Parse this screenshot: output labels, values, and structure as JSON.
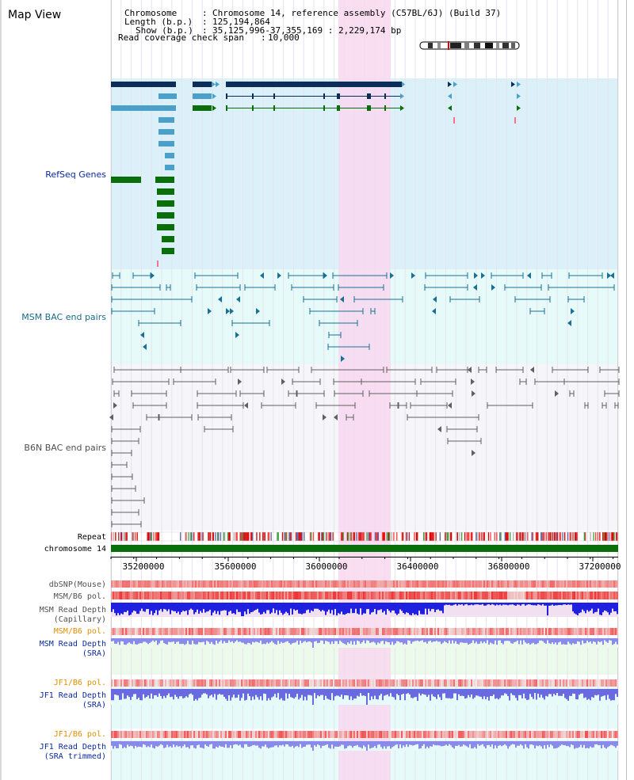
{
  "panel_title": "Map View",
  "info": {
    "chromosome_label": "Chromosome",
    "chromosome_value": "Chromosome 14, reference assembly (C57BL/6J) (Build 37)",
    "length_label": "Length (b.p.)",
    "length_value": "125,194,864",
    "show_label": "Show (b.p.)",
    "show_value": "35,125,996-37,355,169 : 2,229,174 bp",
    "span_label": "Read coverage check span",
    "span_value": "10,000"
  },
  "tracks": {
    "refseq": "RefSeq Genes",
    "msm_bac": "MSM BAC end pairs",
    "b6n_bac": "B6N BAC end pairs",
    "repeat": "Repeat",
    "chromosome": "chromosome 14",
    "dbsnp": "dbSNP(Mouse)",
    "msm_b6_pol_1": "MSM/B6 pol.",
    "msm_depth_cap_1": "MSM Read Depth",
    "msm_depth_cap_2": "(Capillary)",
    "msm_b6_pol_2": "MSM/B6 pol.",
    "msm_depth_sra_1": "MSM Read Depth",
    "msm_depth_sra_2": "(SRA)",
    "jf1_b6_pol_1": "JF1/B6 pol.",
    "jf1_depth_sra_1": "JF1 Read Depth",
    "jf1_depth_sra_2": "(SRA)",
    "jf1_b6_pol_2": "JF1/B6 pol.",
    "jf1_depth_trim_1": "JF1 Read Depth",
    "jf1_depth_trim_2": "(SRA trimmed)"
  },
  "axis_ticks": [
    "35200000",
    "35600000",
    "36000000",
    "36400000",
    "36800000",
    "37200000"
  ],
  "colors": {
    "refseq_bg": "#dcf0fa",
    "bac_bg": "#e6fafa",
    "b6n_bg": "#f6f6fa",
    "highlight": "#f8d8f0",
    "gene_dark": "#0a2d5a",
    "gene_light": "#4aa0c8",
    "gene_green": "#0a6e0a",
    "msm_bac": "#1a7090",
    "b6n_bac": "#606060",
    "track_label_blue": "#0a2a9a",
    "track_label_teal": "#1a6a8a",
    "track_label_orange": "#e09000",
    "track_label_gray": "#505050"
  }
}
